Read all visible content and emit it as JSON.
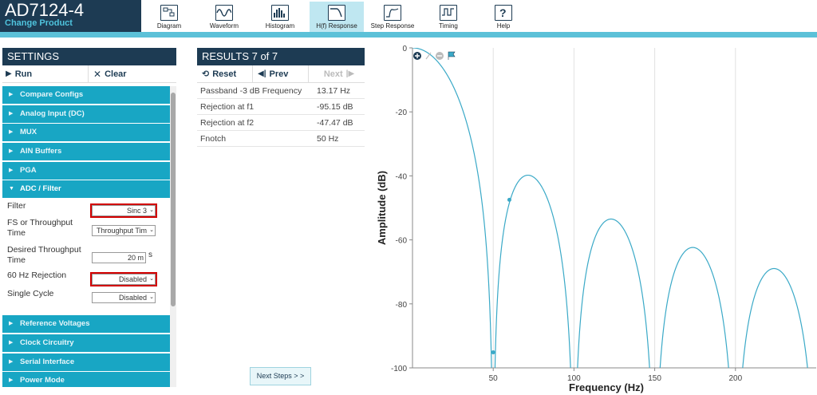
{
  "header": {
    "title": "AD7124-4",
    "subtitle": "Change Product",
    "tabs": [
      {
        "label": "Diagram",
        "icon": "diagram-icon"
      },
      {
        "label": "Waveform",
        "icon": "waveform-icon"
      },
      {
        "label": "Histogram",
        "icon": "histogram-icon"
      },
      {
        "label": "H(f) Response",
        "icon": "filter-response-icon",
        "active": true
      },
      {
        "label": "Step Response",
        "icon": "step-response-icon"
      },
      {
        "label": "Timing",
        "icon": "timing-icon"
      },
      {
        "label": "Help",
        "icon": "help-icon"
      }
    ],
    "accent": "#1d3b53",
    "bar_color": "#5cc1d8"
  },
  "settings": {
    "title": "SETTINGS",
    "run_label": "Run",
    "clear_label": "Clear",
    "sections_before": [
      "Compare Configs",
      "Analog Input (DC)",
      "MUX",
      "AIN Buffers",
      "PGA"
    ],
    "open_section": "ADC / Filter",
    "fields": {
      "filter": {
        "label": "Filter",
        "value": "Sinc 3"
      },
      "fs_or_throughput": {
        "label": "FS or Throughput Time",
        "value": "Throughput Tim"
      },
      "desired_throughput": {
        "label": "Desired Throughput Time",
        "value": "20 m",
        "unit": "s"
      },
      "rejection_60hz": {
        "label": "60 Hz Rejection",
        "value": "Disabled"
      },
      "single_cycle": {
        "label": "Single Cycle",
        "value": "Disabled"
      }
    },
    "sections_after": [
      "Reference Voltages",
      "Clock Circuitry",
      "Serial Interface",
      "Power Mode"
    ],
    "section_color": "#18a6c4"
  },
  "results": {
    "title": "RESULTS  7 of 7",
    "reset_label": "Reset",
    "prev_label": "Prev",
    "next_label": "Next",
    "rows": [
      {
        "name": "Passband -3 dB Frequency",
        "value": "13.17 Hz"
      },
      {
        "name": "Rejection at f1",
        "value": "-95.15 dB"
      },
      {
        "name": "Rejection at f2",
        "value": "-47.47 dB"
      },
      {
        "name": "Fnotch",
        "value": "50 Hz"
      }
    ]
  },
  "next_steps_label": "Next Steps > >",
  "chart_data": {
    "type": "line",
    "xlabel": "Frequency (Hz)",
    "ylabel": "Amplitude (dB)",
    "xlim": [
      0,
      250
    ],
    "ylim": [
      -100,
      0
    ],
    "x_ticks": [
      50,
      100,
      150,
      200
    ],
    "y_ticks": [
      0,
      -20,
      -40,
      -60,
      -80,
      -100
    ],
    "grid": "vertical",
    "series": [
      {
        "formula": "sinc3 with notch at 50 Hz",
        "color": "#3aa9c7"
      }
    ],
    "markers": [
      {
        "x": 50,
        "y": -95.15
      },
      {
        "x": 60,
        "y": -47.47
      }
    ],
    "toolbar_icons": [
      "zoom-in-icon",
      "zoom-select-icon",
      "zoom-out-icon",
      "flag-icon"
    ]
  }
}
